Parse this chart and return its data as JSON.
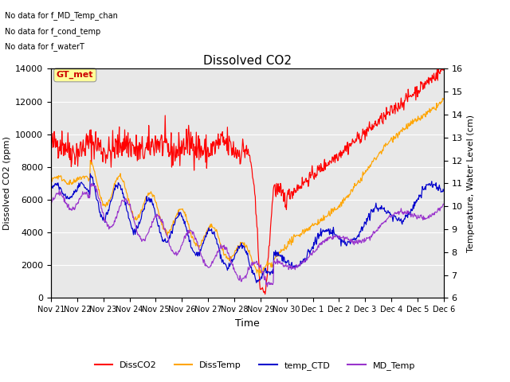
{
  "title": "Dissolved CO2",
  "xlabel": "Time",
  "ylabel_left": "Dissolved CO2 (ppm)",
  "ylabel_right": "Temperature, Water Level (cm)",
  "ylim_left": [
    0,
    14000
  ],
  "ylim_right": [
    6.0,
    16.0
  ],
  "yticks_left": [
    0,
    2000,
    4000,
    6000,
    8000,
    10000,
    12000,
    14000
  ],
  "yticks_right": [
    6.0,
    7.0,
    8.0,
    9.0,
    10.0,
    11.0,
    12.0,
    13.0,
    14.0,
    15.0,
    16.0
  ],
  "xtick_labels": [
    "Nov 21",
    "Nov 22",
    "Nov 23",
    "Nov 24",
    "Nov 25",
    "Nov 26",
    "Nov 27",
    "Nov 28",
    "Nov 29",
    "Nov 30",
    "Dec 1",
    "Dec 2",
    "Dec 3",
    "Dec 4",
    "Dec 5",
    "Dec 6"
  ],
  "background_color": "#e8e8e8",
  "line_colors": {
    "DissCO2": "#ff0000",
    "DissTemp": "#ffa500",
    "temp_CTD": "#0000cd",
    "MD_Temp": "#9933cc"
  },
  "annotations": [
    "No data for f_MD_Temp_chan",
    "No data for f_cond_temp",
    "No data for f_waterT"
  ],
  "gt_met_label": "GT_met",
  "gt_met_color": "#cc0000",
  "gt_met_bg": "#ffff99",
  "legend_labels": [
    "DissCO2",
    "DissTemp",
    "temp_CTD",
    "MD_Temp"
  ],
  "figsize": [
    6.4,
    4.8
  ],
  "dpi": 100
}
